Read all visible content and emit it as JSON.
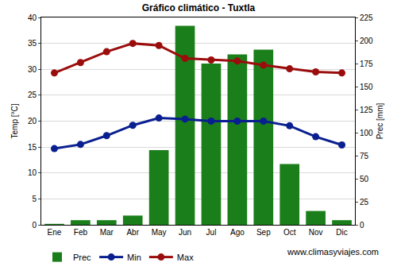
{
  "chart_data": {
    "type": "bar",
    "title": "Gráfico climático - Tuxtla",
    "y_label": "Temp [°C]",
    "y2_label": "Prec [mm]",
    "annotations": [
      "www.climasyviajes.com"
    ],
    "categories": [
      "Ene",
      "Feb",
      "Mar",
      "Abr",
      "May",
      "Jun",
      "Jul",
      "Ago",
      "Sep",
      "Oct",
      "Nov",
      "Dic"
    ],
    "series": [
      {
        "name": "Prec",
        "type": "bar",
        "axis": "y2",
        "color": "#1a7f1a",
        "values": [
          1,
          5,
          5,
          10,
          81,
          216,
          175,
          185,
          190,
          66,
          15,
          5
        ]
      },
      {
        "name": "Min",
        "type": "line",
        "color": "#0a1f8f",
        "marker": "circle",
        "values": [
          14.7,
          15.5,
          17.2,
          19.2,
          20.6,
          20.4,
          20.0,
          20.0,
          20.0,
          19.1,
          17.0,
          15.4
        ]
      },
      {
        "name": "Max",
        "type": "line",
        "color": "#9b0d0d",
        "marker": "circle",
        "values": [
          29.3,
          31.3,
          33.4,
          35.0,
          34.6,
          32.1,
          31.8,
          31.6,
          30.8,
          30.1,
          29.5,
          29.3
        ]
      }
    ],
    "ylim": [
      0,
      40
    ],
    "yticks": [
      0,
      5,
      10,
      15,
      20,
      25,
      30,
      35,
      40
    ],
    "y2lim": [
      0,
      225
    ],
    "y2ticks": [
      0,
      25,
      50,
      75,
      100,
      125,
      150,
      175,
      200,
      225
    ],
    "grid": true,
    "legend": "bottom"
  }
}
